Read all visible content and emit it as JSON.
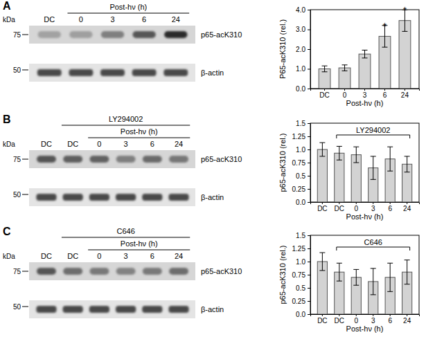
{
  "chart_data": [
    {
      "type": "bar",
      "categories": [
        "DC",
        "0",
        "3",
        "6",
        "24"
      ],
      "values": [
        1.0,
        1.05,
        1.75,
        2.65,
        3.45
      ],
      "errors": [
        0.15,
        0.15,
        0.2,
        0.55,
        0.55
      ],
      "significance": [
        null,
        null,
        null,
        "*",
        "*"
      ],
      "color": "#d3d3d3",
      "x_label": "Post-hν (h)",
      "y_label": "P65-acK310 (rel.)",
      "ylim": [
        0,
        4
      ],
      "yticks": [
        {
          "value": 0,
          "label": "0.0"
        },
        {
          "value": 1,
          "label": "1.0"
        },
        {
          "value": 2,
          "label": "2.0"
        },
        {
          "value": 3,
          "label": "3.0"
        },
        {
          "value": 4,
          "label": "4.0"
        }
      ]
    },
    {
      "type": "bar",
      "categories": [
        "DC",
        "DC",
        "0",
        "3",
        "6",
        "24"
      ],
      "values": [
        1.0,
        0.93,
        0.9,
        0.65,
        0.82,
        0.72
      ],
      "errors": [
        0.13,
        0.13,
        0.15,
        0.22,
        0.23,
        0.15
      ],
      "bracket": "LY294002",
      "color": "#d3d3d3",
      "x_label": "Post-hν (h)",
      "y_label": "p65-acK310 (rel.)",
      "ylim": [
        0,
        1.5
      ],
      "yticks": [
        {
          "value": 0,
          "label": "0.0"
        },
        0.25,
        0.5,
        0.75,
        {
          "value": 1,
          "label": "1.0"
        },
        1.25,
        1.5
      ]
    },
    {
      "type": "bar",
      "categories": [
        "DC",
        "DC",
        "0",
        "3",
        "6",
        "24"
      ],
      "values": [
        1.0,
        0.8,
        0.7,
        0.62,
        0.7,
        0.8
      ],
      "errors": [
        0.17,
        0.17,
        0.15,
        0.25,
        0.27,
        0.23
      ],
      "bracket": "C646",
      "color": "#d3d3d3",
      "x_label": "Post-hν (h)",
      "y_label": "p65-acK310 (rel.)",
      "ylim": [
        0,
        1.5
      ],
      "yticks": [
        {
          "value": 0,
          "label": "0.0"
        },
        0.25,
        0.5,
        0.75,
        {
          "value": 1,
          "label": "1.0"
        },
        1.25,
        1.5
      ]
    }
  ],
  "blots": [
    {
      "panel": "A",
      "unit": "kDa",
      "mw_markers": [
        75,
        50
      ],
      "bands": [
        "p65-acK310",
        "β-actin"
      ],
      "lanes": [
        "DC",
        "0",
        "3",
        "6",
        "24"
      ],
      "time_header": "Post-hν (h)"
    },
    {
      "panel": "B",
      "unit": "kDa",
      "mw_markers": [
        75,
        50
      ],
      "bands": [
        "p65-acK310",
        "β-actin"
      ],
      "lanes": [
        "DC",
        "DC",
        "0",
        "3",
        "6",
        "24"
      ],
      "treatment": "LY294002",
      "time_header": "Post-hν (h)"
    },
    {
      "panel": "C",
      "unit": "kDa",
      "mw_markers": [
        75,
        50
      ],
      "bands": [
        "p65-acK310",
        "β-actin"
      ],
      "lanes": [
        "DC",
        "DC",
        "0",
        "3",
        "6",
        "24"
      ],
      "treatment": "C646",
      "time_header": "Post-hν (h)"
    }
  ]
}
